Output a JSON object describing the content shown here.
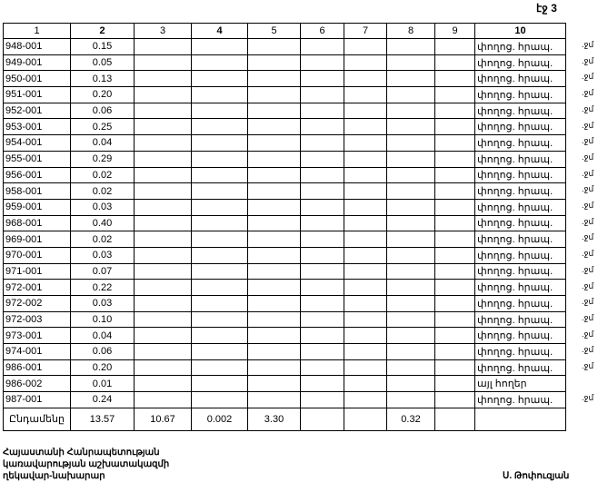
{
  "page_label": "էջ 3",
  "headers": [
    "1",
    "2",
    "3",
    "4",
    "5",
    "6",
    "7",
    "8",
    "9",
    "10"
  ],
  "rows": [
    [
      "948-001",
      "0.15",
      "փողոց. հրապ.",
      ".ջմ"
    ],
    [
      "949-001",
      "0.05",
      "փողոց. հրապ.",
      ".ջմ"
    ],
    [
      "950-001",
      "0.13",
      "փողոց. հրապ.",
      ".ջմ"
    ],
    [
      "951-001",
      "0.20",
      "փողոց. հրապ.",
      ".ջմ"
    ],
    [
      "952-001",
      "0.06",
      "փողոց. հրապ.",
      ".ջմ"
    ],
    [
      "953-001",
      "0.25",
      "փողոց. հրապ.",
      ".ջմ"
    ],
    [
      "954-001",
      "0.04",
      "փողոց. հրապ.",
      ".ջմ"
    ],
    [
      "955-001",
      "0.29",
      "փողոց. հրապ.",
      ".ջմ"
    ],
    [
      "956-001",
      "0.02",
      "փողոց. հրապ.",
      ".ջմ"
    ],
    [
      "958-001",
      "0.02",
      "փողոց. հրապ.",
      ".ջմ"
    ],
    [
      "959-001",
      "0.03",
      "փողոց. հրապ.",
      ".ջմ"
    ],
    [
      "968-001",
      "0.40",
      "փողոց. հրապ.",
      ".ջմ"
    ],
    [
      "969-001",
      "0.02",
      "փողոց. հրապ.",
      ".ջմ"
    ],
    [
      "970-001",
      "0.03",
      "փողոց. հրապ.",
      ".ջմ"
    ],
    [
      "971-001",
      "0.07",
      "փողոց. հրապ.",
      ".ջմ"
    ],
    [
      "972-001",
      "0.22",
      "փողոց. հրապ.",
      ".ջմ"
    ],
    [
      "972-002",
      "0.03",
      "փողոց. հրապ.",
      ".ջմ"
    ],
    [
      "972-003",
      "0.10",
      "փողոց. հրապ.",
      ".ջմ"
    ],
    [
      "973-001",
      "0.04",
      "փողոց. հրապ.",
      ".ջմ"
    ],
    [
      "974-001",
      "0.06",
      "փողոց. հրապ.",
      ".ջմ"
    ],
    [
      "986-001",
      "0.20",
      "փողոց. հրապ.",
      ".ջմ"
    ],
    [
      "986-002",
      "0.01",
      "այլ հողեր",
      ""
    ],
    [
      "987-001",
      "0.24",
      "փողոց. հրապ.",
      ".ջմ"
    ]
  ],
  "total": {
    "label": "Ընդամենը",
    "c2": "13.57",
    "c3": "10.67",
    "c4": "0.002",
    "c5": "3.30",
    "c8": "0.32"
  },
  "signature": {
    "title_lines": [
      "Հայաստանի Հանրապետության",
      "կառավարության աշխատակազմի",
      "ղեկավար-նախարար"
    ],
    "name": "Ս. Թոփուզյան"
  }
}
